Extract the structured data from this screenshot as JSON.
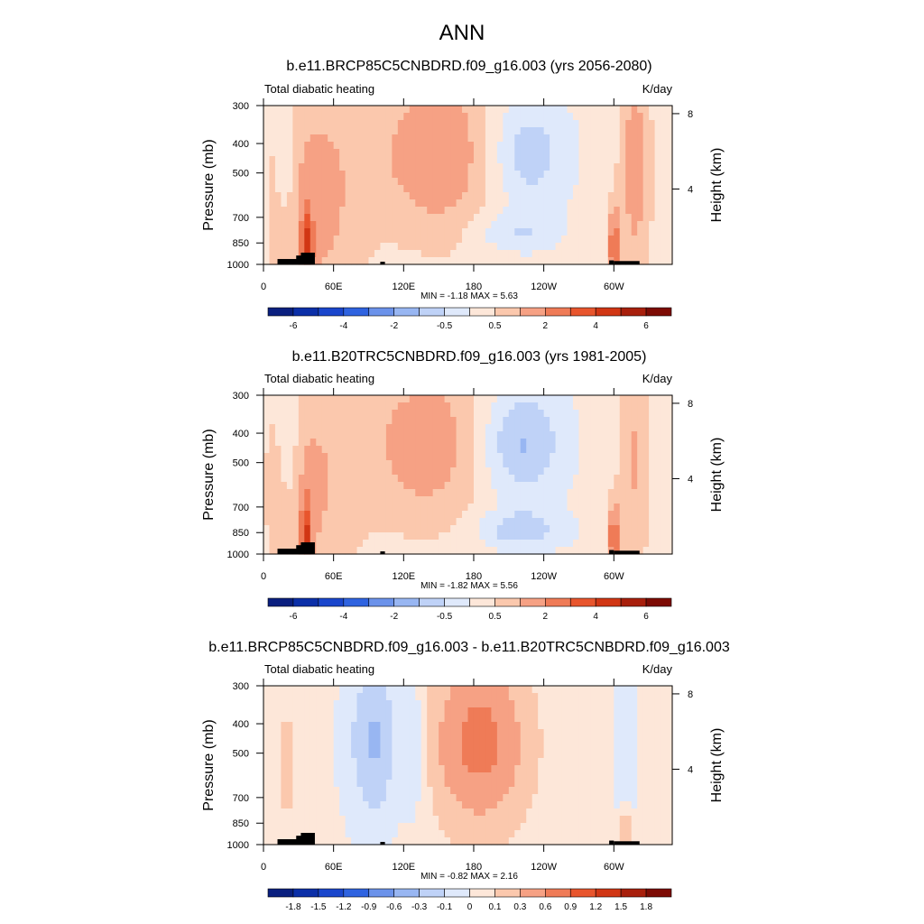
{
  "figure_title": "ANN",
  "chart_data": [
    {
      "type": "heatmap",
      "title": "b.e11.BRCP85C5CNBDRD.f09_g16.003 (yrs 2056-2080)",
      "left_label": "Total diabatic heating",
      "right_label": "K/day",
      "ylabel": "Pressure (mb)",
      "y2label": "Height (km)",
      "xticks": [
        "0",
        "60E",
        "120E",
        "180",
        "120W",
        "60W"
      ],
      "xlim": [
        0,
        350
      ],
      "xtick_values": [
        0,
        60,
        120,
        180,
        240,
        300
      ],
      "yticks": [
        "300",
        "400",
        "500",
        "700",
        "850",
        "1000"
      ],
      "ytick_values": [
        300,
        400,
        500,
        700,
        850,
        1000
      ],
      "ylim": [
        1000,
        300
      ],
      "y2ticks": [
        "4",
        "8"
      ],
      "y2tick_values": [
        4,
        8
      ],
      "stats": "MIN =  -1.18  MAX =   5.63",
      "min": -1.18,
      "max": 5.63,
      "colorbar": {
        "levels": [
          -7,
          -6,
          -5,
          -4,
          -3,
          -2,
          -1,
          -0.5,
          0,
          0.5,
          1,
          2,
          3,
          4,
          5,
          6,
          7
        ],
        "labels": [
          "-6",
          "-4",
          "-2",
          "-0.5",
          "0.5",
          "2",
          "4",
          "6"
        ]
      }
    },
    {
      "type": "heatmap",
      "title": "b.e11.B20TRC5CNBDRD.f09_g16.003 (yrs 1981-2005)",
      "left_label": "Total diabatic heating",
      "right_label": "K/day",
      "ylabel": "Pressure (mb)",
      "y2label": "Height (km)",
      "xticks": [
        "0",
        "60E",
        "120E",
        "180",
        "120W",
        "60W"
      ],
      "xlim": [
        0,
        350
      ],
      "xtick_values": [
        0,
        60,
        120,
        180,
        240,
        300
      ],
      "yticks": [
        "300",
        "400",
        "500",
        "700",
        "850",
        "1000"
      ],
      "ytick_values": [
        300,
        400,
        500,
        700,
        850,
        1000
      ],
      "ylim": [
        1000,
        300
      ],
      "y2ticks": [
        "4",
        "8"
      ],
      "y2tick_values": [
        4,
        8
      ],
      "stats": "MIN =  -1.82  MAX =   5.56",
      "min": -1.82,
      "max": 5.56,
      "colorbar": {
        "levels": [
          -7,
          -6,
          -5,
          -4,
          -3,
          -2,
          -1,
          -0.5,
          0,
          0.5,
          1,
          2,
          3,
          4,
          5,
          6,
          7
        ],
        "labels": [
          "-6",
          "-4",
          "-2",
          "-0.5",
          "0.5",
          "2",
          "4",
          "6"
        ]
      }
    },
    {
      "type": "heatmap",
      "title": "b.e11.BRCP85C5CNBDRD.f09_g16.003 - b.e11.B20TRC5CNBDRD.f09_g16.003",
      "left_label": "Total diabatic heating",
      "right_label": "K/day",
      "ylabel": "Pressure (mb)",
      "y2label": "Height (km)",
      "xticks": [
        "0",
        "60E",
        "120E",
        "180",
        "120W",
        "60W"
      ],
      "xlim": [
        0,
        350
      ],
      "xtick_values": [
        0,
        60,
        120,
        180,
        240,
        300
      ],
      "yticks": [
        "300",
        "400",
        "500",
        "700",
        "850",
        "1000"
      ],
      "ytick_values": [
        300,
        400,
        500,
        700,
        850,
        1000
      ],
      "ylim": [
        1000,
        300
      ],
      "y2ticks": [
        "4",
        "8"
      ],
      "y2tick_values": [
        4,
        8
      ],
      "stats": "MIN =  -0.82  MAX =   2.16",
      "min": -0.82,
      "max": 2.16,
      "colorbar": {
        "levels": [
          -2.1,
          -1.8,
          -1.5,
          -1.2,
          -0.9,
          -0.6,
          -0.3,
          -0.1,
          0,
          0.1,
          0.3,
          0.6,
          0.9,
          1.2,
          1.5,
          1.8,
          2.1
        ],
        "labels": [
          "-1.8",
          "-1.5",
          "-1.2",
          "-0.9",
          "-0.6",
          "-0.3",
          "-0.1",
          "0",
          "0.1",
          "0.3",
          "0.6",
          "0.9",
          "1.2",
          "1.5",
          "1.8"
        ]
      }
    }
  ],
  "colors": {
    "palette": [
      "#0a1f7f",
      "#0b2fa8",
      "#1a46cc",
      "#2f63e0",
      "#6b92ea",
      "#98b6f2",
      "#bfd2f7",
      "#dfe9fb",
      "#fde7d9",
      "#fbc8ad",
      "#f6a184",
      "#ef7b57",
      "#e8552d",
      "#d13614",
      "#a81f0c",
      "#7d0b04"
    ],
    "topography": "#000000"
  }
}
